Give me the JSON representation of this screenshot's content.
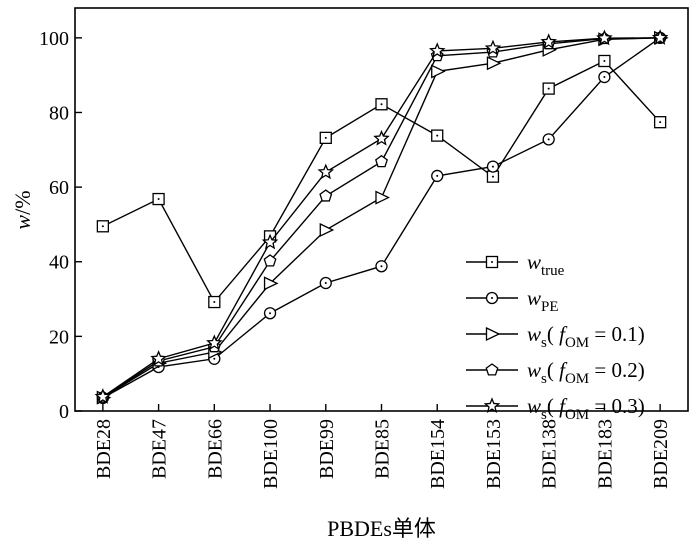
{
  "chart_data": {
    "type": "line",
    "xlabel": "PBDEs单体",
    "ylabel": "w/%",
    "ylim": [
      0,
      108
    ],
    "yticks": [
      0,
      20,
      40,
      60,
      80,
      100
    ],
    "categories": [
      "BDE28",
      "BDE47",
      "BDE66",
      "BDE100",
      "BDE99",
      "BDE85",
      "BDE154",
      "BDE153",
      "BDE138",
      "BDE183",
      "BDE209"
    ],
    "grid": false,
    "legend_position": "bottom-right",
    "series": [
      {
        "name": "w_true",
        "legend": {
          "main": "w",
          "sub": "true",
          "paren": ""
        },
        "marker": "square",
        "values": [
          49.5,
          56.8,
          29.2,
          46.8,
          73.2,
          82.2,
          73.8,
          62.8,
          86.4,
          93.8,
          77.4
        ]
      },
      {
        "name": "w_PE",
        "legend": {
          "main": "w",
          "sub": "PE",
          "paren": ""
        },
        "marker": "circle",
        "values": [
          3.5,
          11.8,
          14.0,
          26.2,
          34.3,
          38.8,
          63.0,
          65.5,
          72.8,
          89.5,
          100
        ]
      },
      {
        "name": "w_s(f_OM = 0.1)",
        "legend": {
          "main": "w",
          "sub": "s",
          "paren": "0.1"
        },
        "marker": "triangle",
        "values": [
          3.6,
          12.8,
          15.8,
          34.2,
          48.5,
          57.2,
          91.0,
          93.2,
          96.8,
          99.6,
          100
        ]
      },
      {
        "name": "w_s(f_OM = 0.2)",
        "legend": {
          "main": "w",
          "sub": "s",
          "paren": "0.2"
        },
        "marker": "pentagon",
        "values": [
          3.7,
          13.4,
          17.2,
          40.2,
          57.6,
          66.8,
          95.2,
          96.2,
          98.4,
          99.8,
          100
        ]
      },
      {
        "name": "w_s(f_OM = 0.3)",
        "legend": {
          "main": "w",
          "sub": "s",
          "paren": "0.3"
        },
        "marker": "star",
        "values": [
          3.8,
          14.0,
          18.2,
          45.2,
          64.0,
          73.0,
          96.5,
          97.2,
          98.9,
          99.9,
          100
        ]
      }
    ]
  }
}
